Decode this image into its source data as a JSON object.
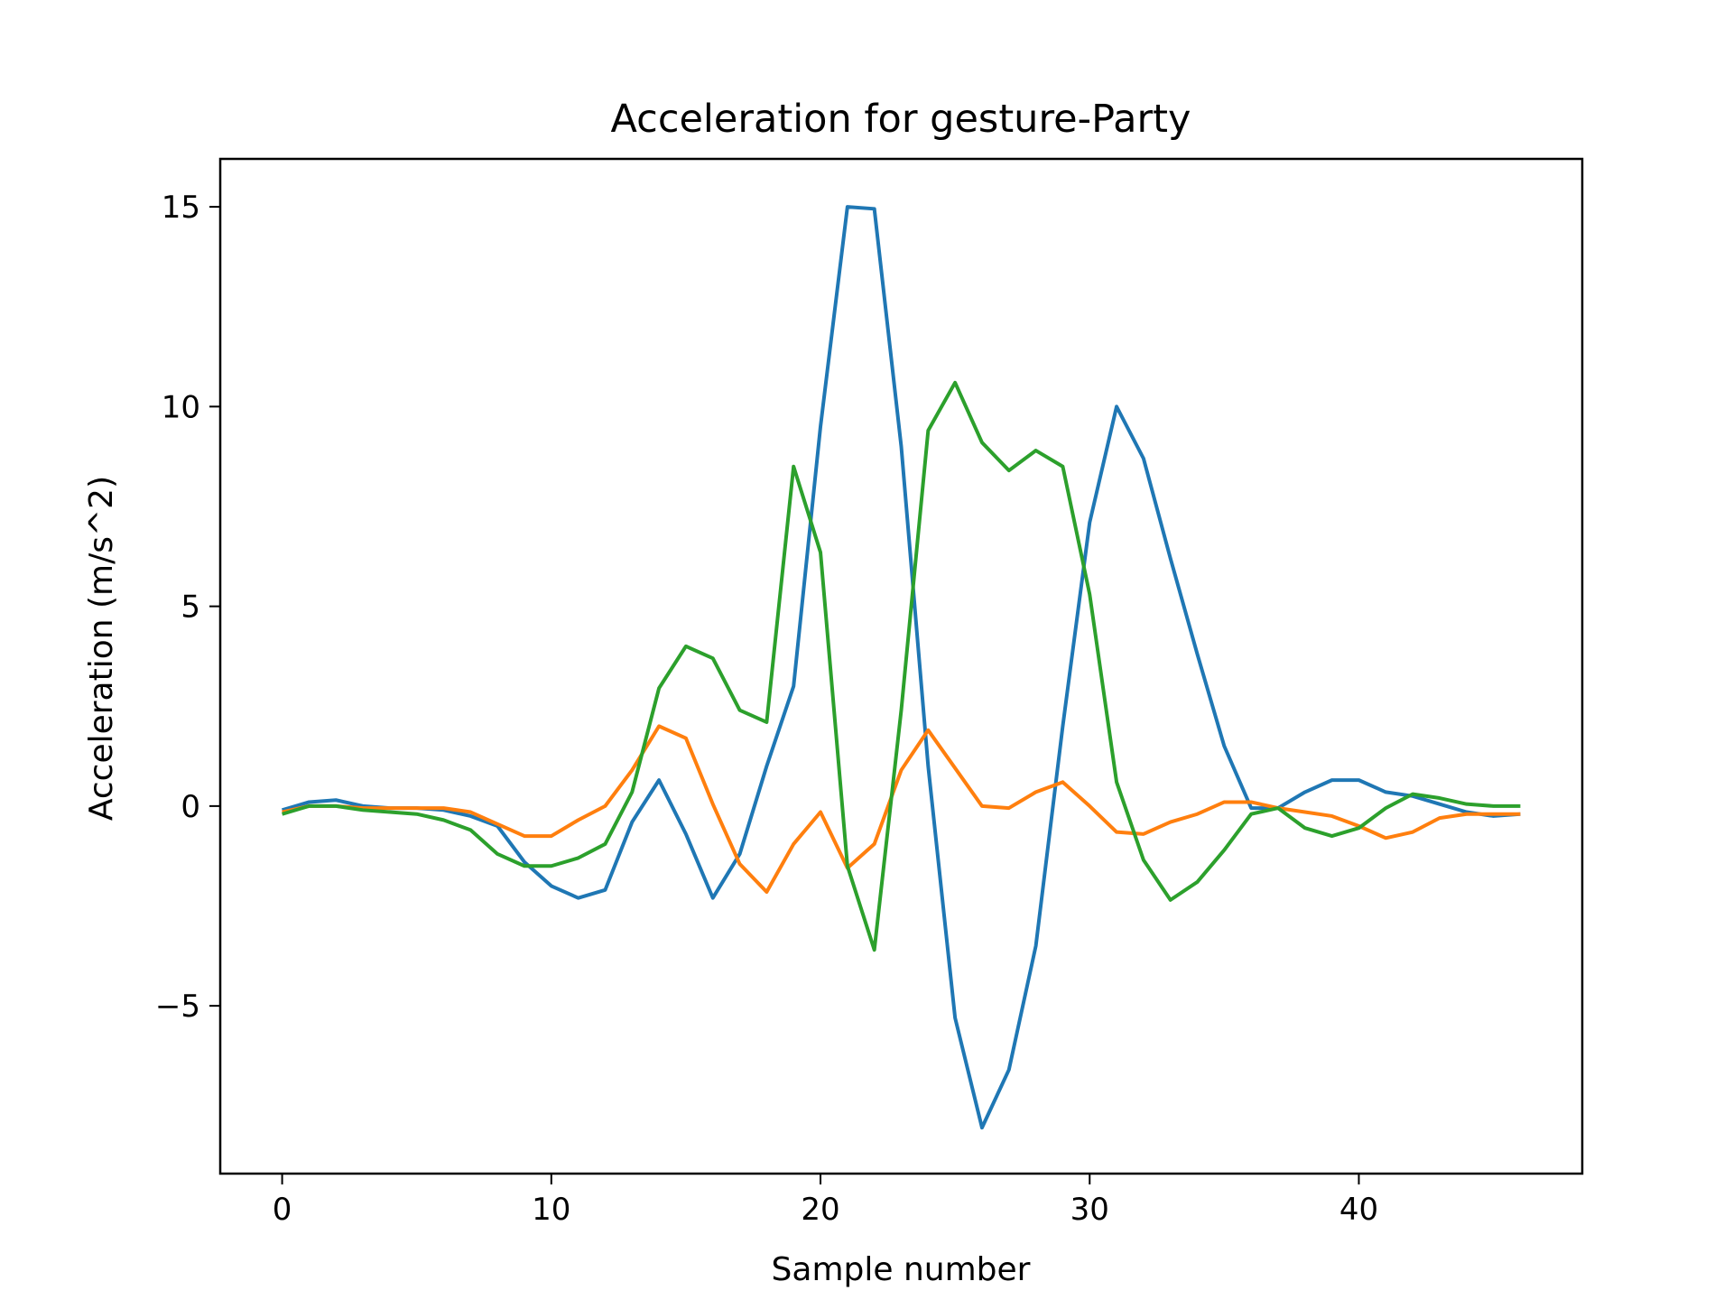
{
  "chart_data": {
    "type": "line",
    "title": "Acceleration for gesture-Party",
    "xlabel": "Sample number",
    "ylabel": "Acceleration (m/s^2)",
    "xlim": [
      -2.3,
      48.3
    ],
    "ylim": [
      -9.2,
      16.2
    ],
    "xticks": [
      0,
      10,
      20,
      30,
      40
    ],
    "yticks": [
      -5,
      0,
      5,
      10,
      15
    ],
    "xtick_labels": [
      "0",
      "10",
      "20",
      "30",
      "40"
    ],
    "ytick_labels": [
      "−5",
      "0",
      "5",
      "10",
      "15"
    ],
    "grid": false,
    "legend": "none",
    "x": [
      0,
      1,
      2,
      3,
      4,
      5,
      6,
      7,
      8,
      9,
      10,
      11,
      12,
      13,
      14,
      15,
      16,
      17,
      18,
      19,
      20,
      21,
      22,
      23,
      24,
      25,
      26,
      27,
      28,
      29,
      30,
      31,
      32,
      33,
      34,
      35,
      36,
      37,
      38,
      39,
      40,
      41,
      42,
      43,
      44,
      45,
      46
    ],
    "series": [
      {
        "color": "#1f77b4",
        "values": [
          -0.1,
          0.1,
          0.15,
          0.0,
          -0.05,
          -0.05,
          -0.1,
          -0.25,
          -0.5,
          -1.4,
          -2.0,
          -2.3,
          -2.1,
          -0.4,
          0.65,
          -0.7,
          -2.3,
          -1.2,
          1.0,
          3.0,
          9.5,
          15.0,
          14.95,
          9.0,
          1.0,
          -5.3,
          -8.05,
          -6.6,
          -3.5,
          2.0,
          7.1,
          10.0,
          8.7,
          6.2,
          3.8,
          1.5,
          -0.05,
          -0.05,
          0.35,
          0.65,
          0.65,
          0.35,
          0.25,
          0.05,
          -0.15,
          -0.25,
          -0.2
        ]
      },
      {
        "color": "#ff7f0e",
        "values": [
          -0.15,
          0.0,
          0.0,
          -0.05,
          -0.05,
          -0.05,
          -0.05,
          -0.15,
          -0.45,
          -0.75,
          -0.75,
          -0.35,
          0.0,
          0.9,
          2.0,
          1.7,
          0.05,
          -1.45,
          -2.15,
          -0.95,
          -0.15,
          -1.55,
          -0.95,
          0.9,
          1.9,
          0.95,
          0.0,
          -0.05,
          0.35,
          0.6,
          0.0,
          -0.65,
          -0.7,
          -0.4,
          -0.2,
          0.1,
          0.1,
          -0.05,
          -0.15,
          -0.25,
          -0.5,
          -0.8,
          -0.65,
          -0.3,
          -0.2,
          -0.2,
          -0.2
        ]
      },
      {
        "color": "#2ca02c",
        "values": [
          -0.2,
          0.0,
          0.0,
          -0.1,
          -0.15,
          -0.2,
          -0.35,
          -0.6,
          -1.2,
          -1.5,
          -1.5,
          -1.3,
          -0.95,
          0.35,
          2.95,
          4.0,
          3.7,
          2.4,
          2.1,
          8.5,
          6.35,
          -1.5,
          -3.6,
          2.4,
          9.4,
          10.6,
          9.1,
          8.4,
          8.9,
          8.5,
          5.3,
          0.6,
          -1.35,
          -2.35,
          -1.9,
          -1.1,
          -0.2,
          -0.05,
          -0.55,
          -0.75,
          -0.55,
          -0.05,
          0.3,
          0.2,
          0.05,
          0.0,
          0.0
        ]
      }
    ]
  }
}
